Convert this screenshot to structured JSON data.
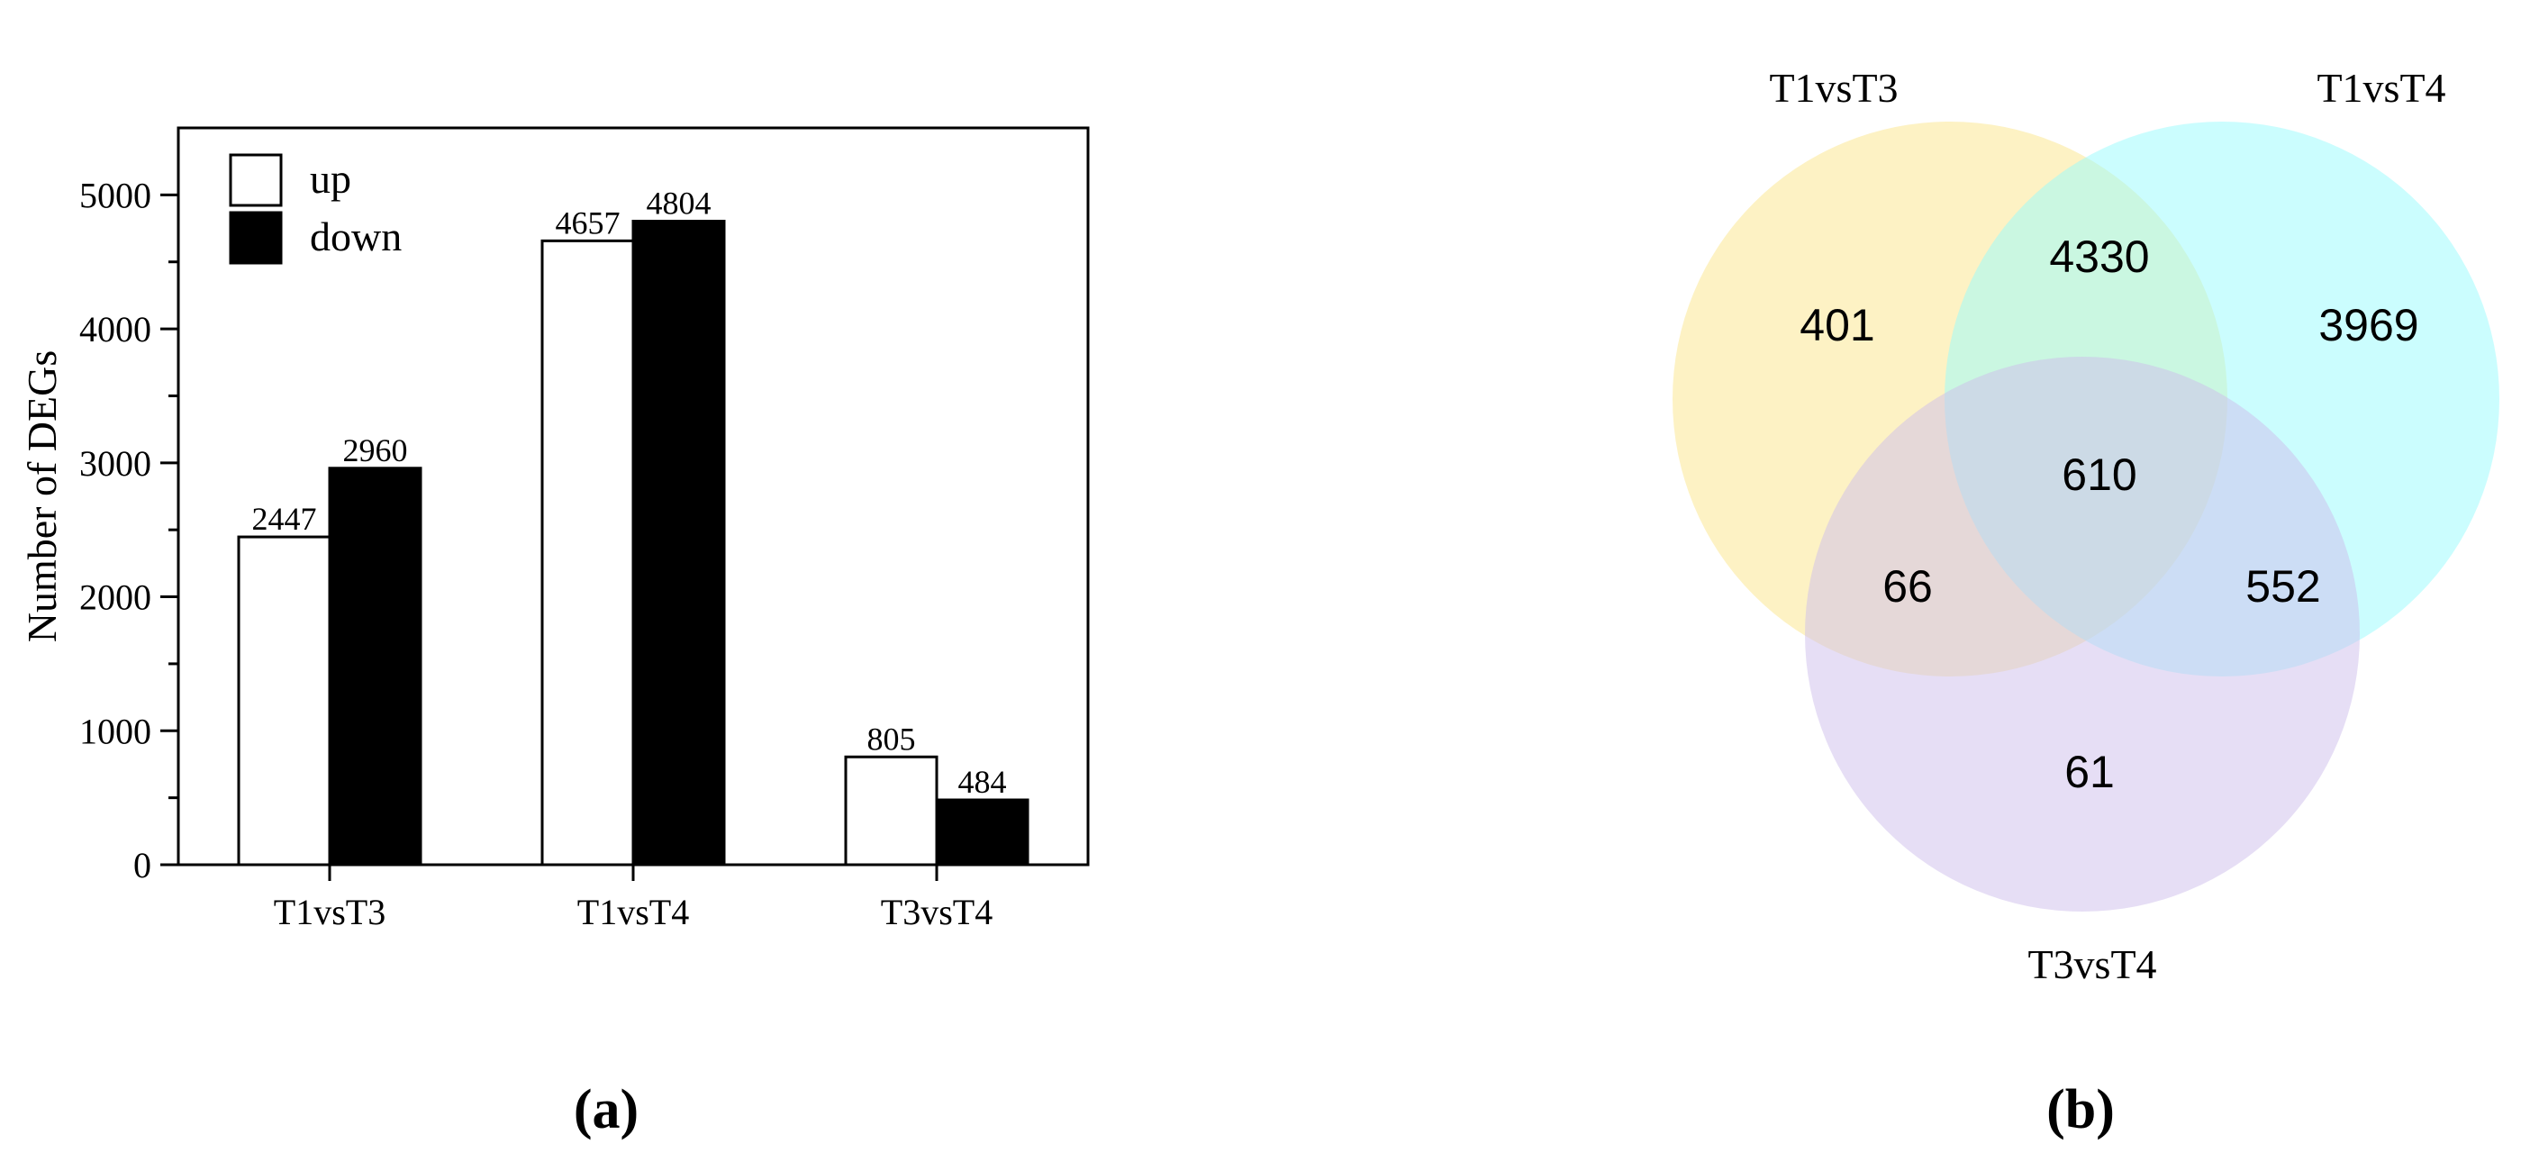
{
  "chart_data": [
    {
      "type": "bar",
      "panel_label": "(a)",
      "categories": [
        "T1vsT3",
        "T1vsT4",
        "T3vsT4"
      ],
      "series": [
        {
          "name": "up",
          "values": [
            2447,
            4657,
            805
          ],
          "color": "#ffffff"
        },
        {
          "name": "down",
          "values": [
            2960,
            4804,
            484
          ],
          "color": "#000000"
        }
      ],
      "ylabel": "Number of DEGs",
      "xlabel": "",
      "ylim": [
        0,
        5500
      ],
      "yticks": [
        "0",
        "1000",
        "2000",
        "3000",
        "4000",
        "5000"
      ],
      "data_labels": {
        "up": [
          "2447",
          "4657",
          "805"
        ],
        "down": [
          "2960",
          "4804",
          "484"
        ]
      },
      "legend": {
        "placement": "top-left",
        "entries": [
          "up",
          "down"
        ]
      },
      "grid": false
    },
    {
      "type": "venn",
      "panel_label": "(b)",
      "sets": [
        {
          "name": "T1vsT3",
          "color": "#fce68a"
        },
        {
          "name": "T1vsT4",
          "color": "#98fcfd"
        },
        {
          "name": "T3vsT4",
          "color": "#cdbdec"
        }
      ],
      "regions": {
        "T1vsT3_only": "401",
        "T1vsT4_only": "3969",
        "T3vsT4_only": "61",
        "T1vsT3_T1vsT4": "4330",
        "T1vsT3_T3vsT4": "66",
        "T1vsT4_T3vsT4": "552",
        "all_three": "610"
      }
    }
  ]
}
